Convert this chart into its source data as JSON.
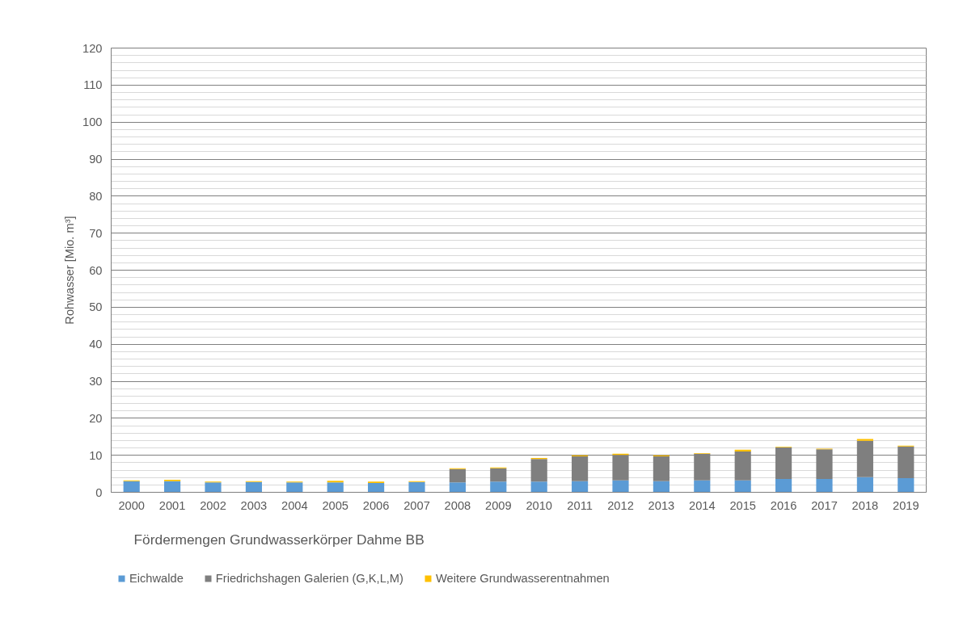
{
  "chart_data": {
    "type": "bar",
    "stacked": true,
    "title": "Fördermengen Grundwasserkörper Dahme BB",
    "ylabel": "Rohwasser [Mio. m³]",
    "categories": [
      "2000",
      "2001",
      "2002",
      "2003",
      "2004",
      "2005",
      "2006",
      "2007",
      "2008",
      "2009",
      "2010",
      "2011",
      "2012",
      "2013",
      "2014",
      "2015",
      "2016",
      "2017",
      "2018",
      "2019"
    ],
    "series": [
      {
        "name": "Eichwalde",
        "color": "#5b9bd5",
        "values": [
          3.0,
          3.0,
          2.7,
          2.8,
          2.7,
          2.7,
          2.5,
          2.8,
          2.7,
          2.9,
          2.9,
          3.0,
          3.2,
          3.0,
          3.2,
          3.2,
          3.6,
          3.6,
          4.1,
          3.8
        ]
      },
      {
        "name": "Friedrichshagen Galerien (G,K,L,M)",
        "color": "#7f7f7f",
        "values": [
          0,
          0,
          0,
          0,
          0,
          0,
          0,
          0,
          3.6,
          3.6,
          6.1,
          6.7,
          6.9,
          6.7,
          7.2,
          7.8,
          8.5,
          8.0,
          9.8,
          8.6
        ]
      },
      {
        "name": "Weitere Grundwasserentnahmen",
        "color": "#ffc000",
        "values": [
          0.2,
          0.4,
          0.2,
          0.2,
          0.2,
          0.4,
          0.4,
          0.2,
          0.2,
          0.2,
          0.3,
          0.3,
          0.3,
          0.3,
          0.2,
          0.5,
          0.2,
          0.2,
          0.5,
          0.2
        ]
      }
    ],
    "ylim": [
      0,
      120
    ],
    "yticks": [
      0,
      10,
      20,
      30,
      40,
      50,
      60,
      70,
      80,
      90,
      100,
      110,
      120
    ],
    "grid": "y",
    "legend": "bottom"
  }
}
